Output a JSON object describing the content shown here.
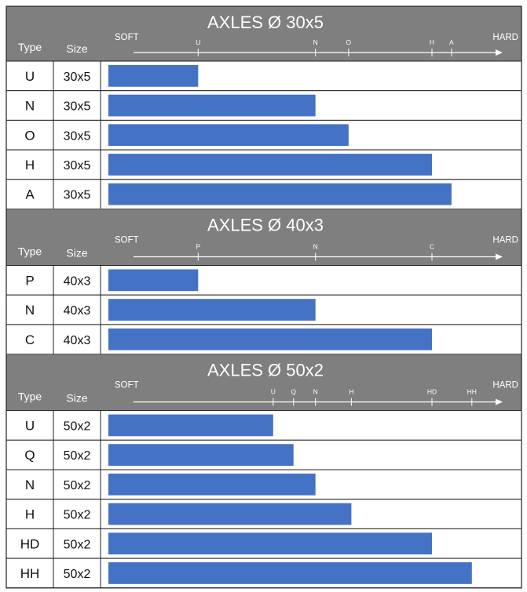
{
  "chart_data": {
    "type": "bar",
    "orientation": "horizontal",
    "column_headers": {
      "type": "Type",
      "size": "Size"
    },
    "scale_labels": {
      "soft": "SOFT",
      "hard": "HARD"
    },
    "colors": {
      "bar": "#4472c4",
      "header_bg": "#7f7f7f",
      "header_text": "#ffffff",
      "grid": "#222222"
    },
    "scale": [
      0,
      100
    ],
    "sections": [
      {
        "title": "AXLES Ø 30x5",
        "ticks": [
          {
            "label": "U",
            "value": 22.7
          },
          {
            "label": "N",
            "value": 52.1
          },
          {
            "label": "O",
            "value": 60.4
          },
          {
            "label": "H",
            "value": 81.3
          },
          {
            "label": "A",
            "value": 86.2
          }
        ],
        "rows": [
          {
            "type": "U",
            "size": "30x5",
            "value": 22.7
          },
          {
            "type": "N",
            "size": "30x5",
            "value": 52.1
          },
          {
            "type": "O",
            "size": "30x5",
            "value": 60.4
          },
          {
            "type": "H",
            "size": "30x5",
            "value": 81.3
          },
          {
            "type": "A",
            "size": "30x5",
            "value": 86.2
          }
        ]
      },
      {
        "title": "AXLES Ø 40x3",
        "ticks": [
          {
            "label": "P",
            "value": 22.7
          },
          {
            "label": "N",
            "value": 52.1
          },
          {
            "label": "C",
            "value": 81.3
          }
        ],
        "rows": [
          {
            "type": "P",
            "size": "40x3",
            "value": 22.7
          },
          {
            "type": "N",
            "size": "40x3",
            "value": 52.1
          },
          {
            "type": "C",
            "size": "40x3",
            "value": 81.3
          }
        ]
      },
      {
        "title": "AXLES Ø 50x2",
        "ticks": [
          {
            "label": "U",
            "value": 41.5
          },
          {
            "label": "Q",
            "value": 46.6
          },
          {
            "label": "N",
            "value": 52.1
          },
          {
            "label": "H",
            "value": 61.1
          },
          {
            "label": "HD",
            "value": 81.3
          },
          {
            "label": "HH",
            "value": 91.3
          }
        ],
        "rows": [
          {
            "type": "U",
            "size": "50x2",
            "value": 41.5
          },
          {
            "type": "Q",
            "size": "50x2",
            "value": 46.6
          },
          {
            "type": "N",
            "size": "50x2",
            "value": 52.1
          },
          {
            "type": "H",
            "size": "50x2",
            "value": 61.1
          },
          {
            "type": "HD",
            "size": "50x2",
            "value": 81.3
          },
          {
            "type": "HH",
            "size": "50x2",
            "value": 91.3
          }
        ]
      }
    ]
  }
}
